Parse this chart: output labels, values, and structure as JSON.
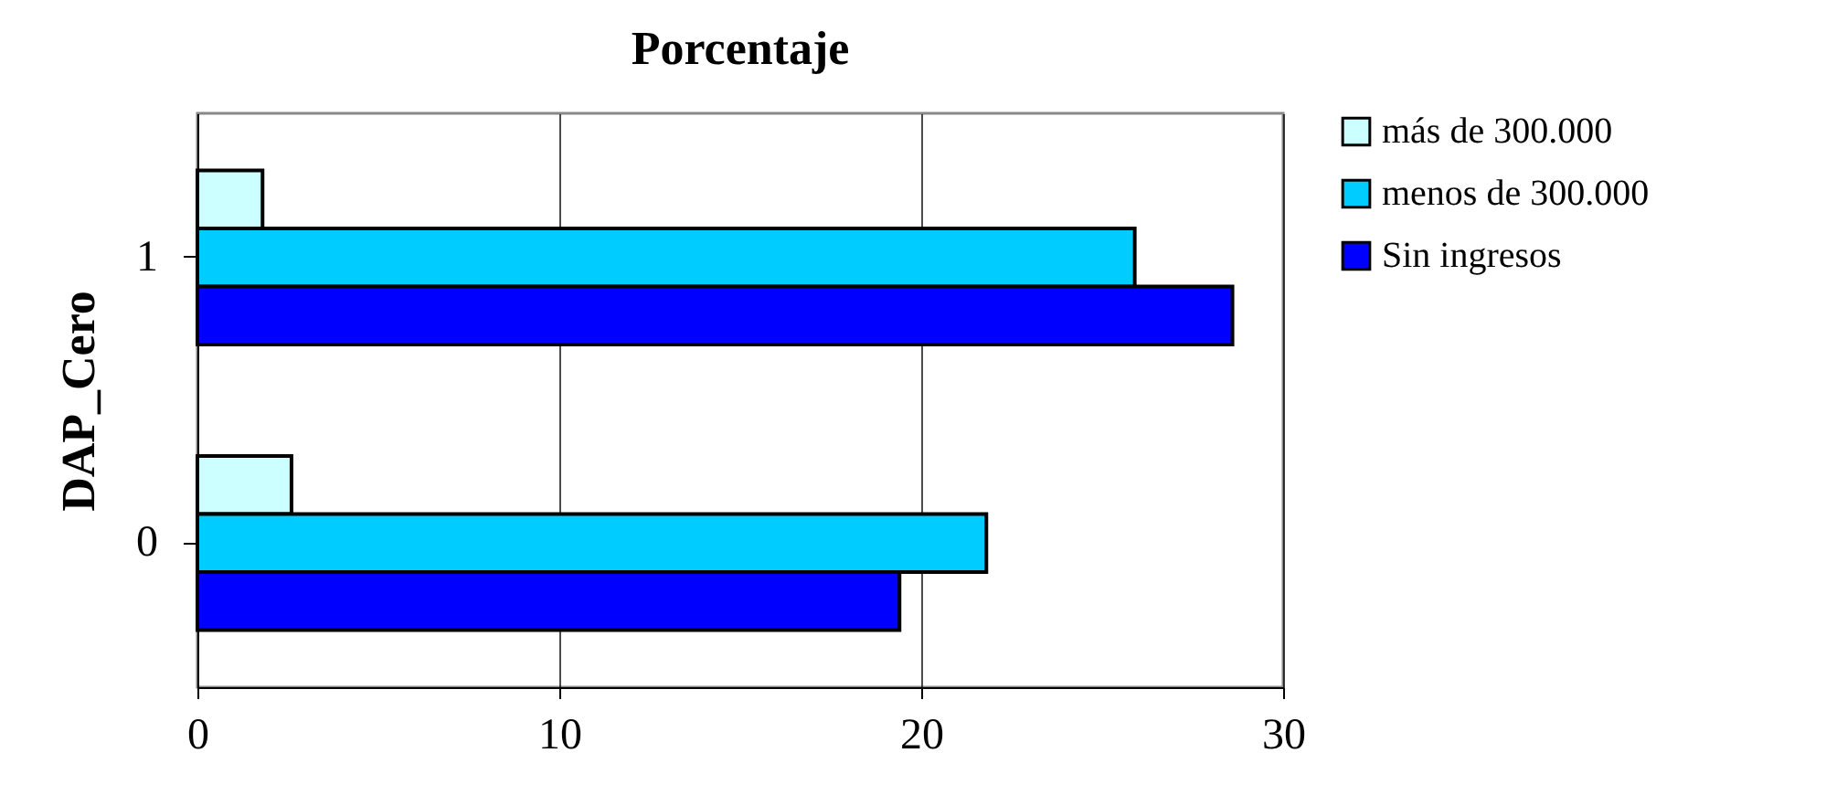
{
  "chart_data": {
    "type": "bar",
    "title": "Porcentaje",
    "ylabel": "DAP_Cero",
    "orientation": "horizontal",
    "categories": [
      "1",
      "0"
    ],
    "series": [
      {
        "name": "más de 300.000",
        "color": "#ccffff",
        "values": [
          1.8,
          2.6
        ]
      },
      {
        "name": "menos de 300.000",
        "color": "#00ccff",
        "values": [
          25.9,
          21.8
        ]
      },
      {
        "name": "Sin ingresos",
        "color": "#0000ff",
        "values": [
          28.6,
          19.4
        ]
      }
    ],
    "xlim": [
      0,
      30
    ],
    "xticks": [
      0,
      10,
      20,
      30
    ],
    "grid": "x",
    "legend": "right"
  }
}
